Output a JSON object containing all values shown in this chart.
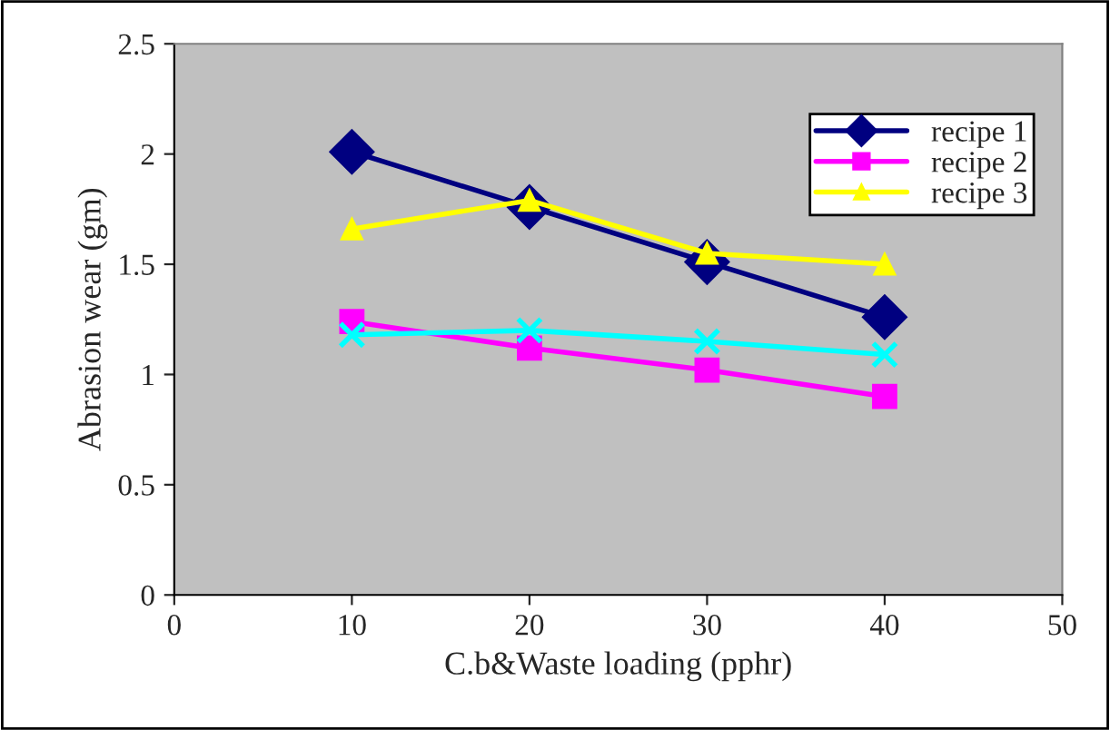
{
  "chart_data": {
    "type": "line",
    "xlabel": "C.b&Waste loading (pphr)",
    "ylabel": "Abrasion wear (gm)",
    "x": [
      10,
      20,
      30,
      40
    ],
    "series": [
      {
        "name": "recipe 1",
        "color": "#000080",
        "marker": "diamond",
        "values": [
          2.01,
          1.76,
          1.51,
          1.26
        ]
      },
      {
        "name": "recipe 2",
        "color": "#ff00ff",
        "marker": "square",
        "values": [
          1.24,
          1.12,
          1.02,
          0.9
        ]
      },
      {
        "name": "recipe 3",
        "color": "#ffff00",
        "marker": "triangle",
        "values": [
          1.66,
          1.79,
          1.55,
          1.5
        ]
      },
      {
        "color": "#00ffff",
        "marker": "cross",
        "values": [
          1.18,
          1.2,
          1.15,
          1.09
        ]
      }
    ],
    "xlim": [
      0,
      50
    ],
    "xticks": [
      0,
      10,
      20,
      30,
      40,
      50
    ],
    "ylim": [
      0,
      2.5
    ],
    "yticks": [
      0,
      0.5,
      1,
      1.5,
      2,
      2.5
    ],
    "grid": false,
    "legend": "top right",
    "line_style": "solid"
  }
}
